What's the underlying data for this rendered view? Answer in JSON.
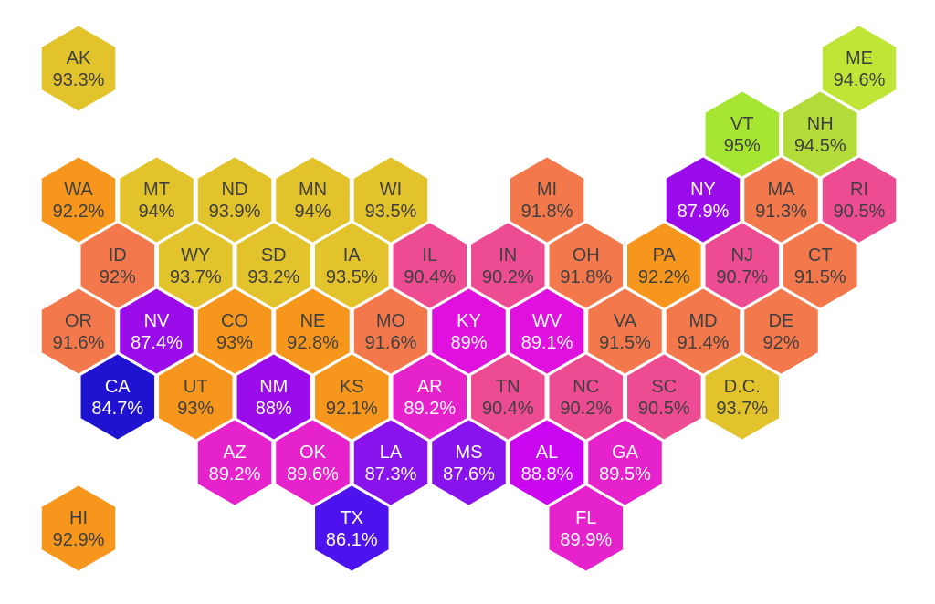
{
  "chart_data": {
    "type": "heatmap",
    "subtype": "hexagon-tile-cartogram-us-states",
    "title": "",
    "unit": "%",
    "background_color": "#FFFFFF",
    "tile_border_color": "#FFFFFF",
    "value_range_shown": [
      84.7,
      95
    ],
    "color_scale_note": "blue (lowest) through purple, magenta, pink, orange, gold to green (highest)",
    "states": [
      {
        "abbr": "AK",
        "value": 93.3,
        "label": "93.3%",
        "fill": "#E2C32C",
        "text_color": "#3F3F3F",
        "row": 0,
        "col": 0
      },
      {
        "abbr": "ME",
        "value": 94.6,
        "label": "94.6%",
        "fill": "#BFE636",
        "text_color": "#3F3F3F",
        "row": 0,
        "col": 10
      },
      {
        "abbr": "VT",
        "value": 95,
        "label": "95%",
        "fill": "#A6E531",
        "text_color": "#3F3F3F",
        "row": 1,
        "col": 8.5
      },
      {
        "abbr": "NH",
        "value": 94.5,
        "label": "94.5%",
        "fill": "#B3DC3A",
        "text_color": "#3F3F3F",
        "row": 1,
        "col": 9.5
      },
      {
        "abbr": "WA",
        "value": 92.2,
        "label": "92.2%",
        "fill": "#F7961C",
        "text_color": "#3F3F3F",
        "row": 2,
        "col": 0
      },
      {
        "abbr": "MT",
        "value": 94,
        "label": "94%",
        "fill": "#E2C32C",
        "text_color": "#3F3F3F",
        "row": 2,
        "col": 1
      },
      {
        "abbr": "ND",
        "value": 93.9,
        "label": "93.9%",
        "fill": "#E2C32C",
        "text_color": "#3F3F3F",
        "row": 2,
        "col": 2
      },
      {
        "abbr": "MN",
        "value": 94,
        "label": "94%",
        "fill": "#E2C32C",
        "text_color": "#3F3F3F",
        "row": 2,
        "col": 3
      },
      {
        "abbr": "WI",
        "value": 93.5,
        "label": "93.5%",
        "fill": "#E2C32C",
        "text_color": "#3F3F3F",
        "row": 2,
        "col": 4
      },
      {
        "abbr": "MI",
        "value": 91.8,
        "label": "91.8%",
        "fill": "#F3784C",
        "text_color": "#3F3F3F",
        "row": 2,
        "col": 6
      },
      {
        "abbr": "NY",
        "value": 87.9,
        "label": "87.9%",
        "fill": "#9A0CE9",
        "text_color": "#FFFFFF",
        "row": 2,
        "col": 8
      },
      {
        "abbr": "MA",
        "value": 91.3,
        "label": "91.3%",
        "fill": "#F3784C",
        "text_color": "#3F3F3F",
        "row": 2,
        "col": 9
      },
      {
        "abbr": "RI",
        "value": 90.5,
        "label": "90.5%",
        "fill": "#EE4C92",
        "text_color": "#3F3F3F",
        "row": 2,
        "col": 10
      },
      {
        "abbr": "ID",
        "value": 92,
        "label": "92%",
        "fill": "#F3784C",
        "text_color": "#3F3F3F",
        "row": 3,
        "col": 0.5
      },
      {
        "abbr": "WY",
        "value": 93.7,
        "label": "93.7%",
        "fill": "#E2C32C",
        "text_color": "#3F3F3F",
        "row": 3,
        "col": 1.5
      },
      {
        "abbr": "SD",
        "value": 93.2,
        "label": "93.2%",
        "fill": "#E2C32C",
        "text_color": "#3F3F3F",
        "row": 3,
        "col": 2.5
      },
      {
        "abbr": "IA",
        "value": 93.5,
        "label": "93.5%",
        "fill": "#E2C32C",
        "text_color": "#3F3F3F",
        "row": 3,
        "col": 3.5
      },
      {
        "abbr": "IL",
        "value": 90.4,
        "label": "90.4%",
        "fill": "#EE4C92",
        "text_color": "#3F3F3F",
        "row": 3,
        "col": 4.5
      },
      {
        "abbr": "IN",
        "value": 90.2,
        "label": "90.2%",
        "fill": "#EE4C92",
        "text_color": "#3F3F3F",
        "row": 3,
        "col": 5.5
      },
      {
        "abbr": "OH",
        "value": 91.8,
        "label": "91.8%",
        "fill": "#F3784C",
        "text_color": "#3F3F3F",
        "row": 3,
        "col": 6.5
      },
      {
        "abbr": "PA",
        "value": 92.2,
        "label": "92.2%",
        "fill": "#F7961C",
        "text_color": "#3F3F3F",
        "row": 3,
        "col": 7.5
      },
      {
        "abbr": "NJ",
        "value": 90.7,
        "label": "90.7%",
        "fill": "#EE4C92",
        "text_color": "#3F3F3F",
        "row": 3,
        "col": 8.5
      },
      {
        "abbr": "CT",
        "value": 91.5,
        "label": "91.5%",
        "fill": "#F3784C",
        "text_color": "#3F3F3F",
        "row": 3,
        "col": 9.5
      },
      {
        "abbr": "OR",
        "value": 91.6,
        "label": "91.6%",
        "fill": "#F3784C",
        "text_color": "#3F3F3F",
        "row": 4,
        "col": 0
      },
      {
        "abbr": "NV",
        "value": 87.4,
        "label": "87.4%",
        "fill": "#9A0CE9",
        "text_color": "#FFFFFF",
        "row": 4,
        "col": 1
      },
      {
        "abbr": "CO",
        "value": 93,
        "label": "93%",
        "fill": "#F7961C",
        "text_color": "#3F3F3F",
        "row": 4,
        "col": 2
      },
      {
        "abbr": "NE",
        "value": 92.8,
        "label": "92.8%",
        "fill": "#F7961C",
        "text_color": "#3F3F3F",
        "row": 4,
        "col": 3
      },
      {
        "abbr": "MO",
        "value": 91.6,
        "label": "91.6%",
        "fill": "#F3784C",
        "text_color": "#3F3F3F",
        "row": 4,
        "col": 4
      },
      {
        "abbr": "KY",
        "value": 89,
        "label": "89%",
        "fill": "#E010DF",
        "text_color": "#FFFFFF",
        "row": 4,
        "col": 5
      },
      {
        "abbr": "WV",
        "value": 89.1,
        "label": "89.1%",
        "fill": "#E010DF",
        "text_color": "#FFFFFF",
        "row": 4,
        "col": 6
      },
      {
        "abbr": "VA",
        "value": 91.5,
        "label": "91.5%",
        "fill": "#F3784C",
        "text_color": "#3F3F3F",
        "row": 4,
        "col": 7
      },
      {
        "abbr": "MD",
        "value": 91.4,
        "label": "91.4%",
        "fill": "#F3784C",
        "text_color": "#3F3F3F",
        "row": 4,
        "col": 8
      },
      {
        "abbr": "DE",
        "value": 92,
        "label": "92%",
        "fill": "#F3784C",
        "text_color": "#3F3F3F",
        "row": 4,
        "col": 9
      },
      {
        "abbr": "CA",
        "value": 84.7,
        "label": "84.7%",
        "fill": "#1F12D1",
        "text_color": "#FFFFFF",
        "row": 5,
        "col": 0.5
      },
      {
        "abbr": "UT",
        "value": 93,
        "label": "93%",
        "fill": "#F7961C",
        "text_color": "#3F3F3F",
        "row": 5,
        "col": 1.5
      },
      {
        "abbr": "NM",
        "value": 88,
        "label": "88%",
        "fill": "#9A0CE9",
        "text_color": "#FFFFFF",
        "row": 5,
        "col": 2.5
      },
      {
        "abbr": "KS",
        "value": 92.1,
        "label": "92.1%",
        "fill": "#F7961C",
        "text_color": "#3F3F3F",
        "row": 5,
        "col": 3.5
      },
      {
        "abbr": "AR",
        "value": 89.2,
        "label": "89.2%",
        "fill": "#E622CC",
        "text_color": "#FFFFFF",
        "row": 5,
        "col": 4.5
      },
      {
        "abbr": "TN",
        "value": 90.4,
        "label": "90.4%",
        "fill": "#EE4C92",
        "text_color": "#3F3F3F",
        "row": 5,
        "col": 5.5
      },
      {
        "abbr": "NC",
        "value": 90.2,
        "label": "90.2%",
        "fill": "#EE4C92",
        "text_color": "#3F3F3F",
        "row": 5,
        "col": 6.5
      },
      {
        "abbr": "SC",
        "value": 90.5,
        "label": "90.5%",
        "fill": "#EE4C92",
        "text_color": "#3F3F3F",
        "row": 5,
        "col": 7.5
      },
      {
        "abbr": "D.C.",
        "value": 93.7,
        "label": "93.7%",
        "fill": "#E2C32C",
        "text_color": "#3F3F3F",
        "row": 5,
        "col": 8.5
      },
      {
        "abbr": "AZ",
        "value": 89.2,
        "label": "89.2%",
        "fill": "#E622CC",
        "text_color": "#FFFFFF",
        "row": 6,
        "col": 2
      },
      {
        "abbr": "OK",
        "value": 89.6,
        "label": "89.6%",
        "fill": "#E622CC",
        "text_color": "#FFFFFF",
        "row": 6,
        "col": 3
      },
      {
        "abbr": "LA",
        "value": 87.3,
        "label": "87.3%",
        "fill": "#8813EC",
        "text_color": "#FFFFFF",
        "row": 6,
        "col": 4
      },
      {
        "abbr": "MS",
        "value": 87.6,
        "label": "87.6%",
        "fill": "#8813EC",
        "text_color": "#FFFFFF",
        "row": 6,
        "col": 5
      },
      {
        "abbr": "AL",
        "value": 88.8,
        "label": "88.8%",
        "fill": "#CB07F1",
        "text_color": "#FFFFFF",
        "row": 6,
        "col": 6
      },
      {
        "abbr": "GA",
        "value": 89.5,
        "label": "89.5%",
        "fill": "#E622CC",
        "text_color": "#FFFFFF",
        "row": 6,
        "col": 7
      },
      {
        "abbr": "HI",
        "value": 92.9,
        "label": "92.9%",
        "fill": "#F7961C",
        "text_color": "#3F3F3F",
        "row": 7,
        "col": 0
      },
      {
        "abbr": "TX",
        "value": 86.1,
        "label": "86.1%",
        "fill": "#4C13EE",
        "text_color": "#FFFFFF",
        "row": 7,
        "col": 3.5
      },
      {
        "abbr": "FL",
        "value": 89.9,
        "label": "89.9%",
        "fill": "#E622CC",
        "text_color": "#FFFFFF",
        "row": 7,
        "col": 6.5
      }
    ]
  }
}
